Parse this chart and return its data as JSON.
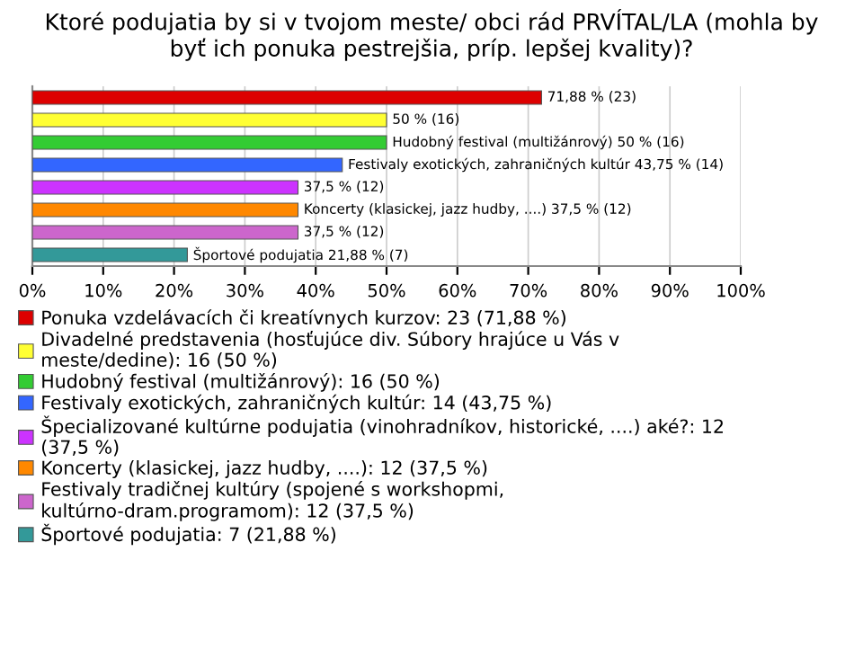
{
  "chart_data": {
    "type": "bar",
    "orientation": "horizontal",
    "title": "Ktoré podujatia by si v tvojom meste/ obci rád PRVÍTAL/LA (mohla by\nbyť ich ponuka pestrejšia, príp. lepšej kvality)?",
    "categories": [
      null,
      null,
      null,
      null,
      null,
      null,
      null,
      null
    ],
    "series": [
      {
        "name": "Ponuka vzdelávacích či kreatívnych kurzov: 23 (71,88 %)",
        "color": "#dd0000",
        "values": [
          71.88,
          null,
          null,
          null,
          null,
          null,
          null,
          null
        ],
        "value_labels": [
          "71,88 % (23)",
          null,
          null,
          null,
          null,
          null,
          null,
          null
        ]
      },
      {
        "name": "Divadelné predstavenia (hosťujúce div. Súbory hrajúce u Vás v\nmeste/dedine): 16 (50 %)",
        "color": "#ffff33",
        "values": [
          null,
          50,
          null,
          null,
          null,
          null,
          null,
          null
        ],
        "value_labels": [
          null,
          "50 % (16)",
          null,
          null,
          null,
          null,
          null,
          null
        ]
      },
      {
        "name": "Hudobný festival (multižánrový): 16 (50 %)",
        "color": "#33cc33",
        "values": [
          null,
          null,
          50,
          null,
          null,
          null,
          null,
          null
        ],
        "value_labels": [
          null,
          null,
          "Hudobný festival (multižánrový) 50 % (16)",
          null,
          null,
          null,
          null,
          null
        ]
      },
      {
        "name": "Festivaly exotických, zahraničných kultúr: 14 (43,75 %)",
        "color": "#3366ff",
        "values": [
          null,
          null,
          null,
          43.75,
          null,
          null,
          null,
          null
        ],
        "value_labels": [
          null,
          null,
          null,
          "Festivaly exotických, zahraničných kultúr 43,75 % (14)",
          null,
          null,
          null,
          null
        ]
      },
      {
        "name": "Špecializované kultúrne podujatia (vinohradníkov, historické, ....) aké?: 12\n(37,5 %)",
        "color": "#cc33ff",
        "values": [
          null,
          null,
          null,
          null,
          37.5,
          null,
          null,
          null
        ],
        "value_labels": [
          null,
          null,
          null,
          null,
          "37,5 % (12)",
          null,
          null,
          null
        ]
      },
      {
        "name": "Koncerty (klasickej, jazz hudby, ....): 12 (37,5 %)",
        "color": "#ff8800",
        "values": [
          null,
          null,
          null,
          null,
          null,
          37.5,
          null,
          null
        ],
        "value_labels": [
          null,
          null,
          null,
          null,
          null,
          "Koncerty (klasickej, jazz hudby, ....) 37,5 % (12)",
          null,
          null
        ]
      },
      {
        "name": "Festivaly tradičnej kultúry (spojené s workshopmi,\nkultúrno-dram.programom): 12 (37,5 %)",
        "color": "#cc66cc",
        "values": [
          null,
          null,
          null,
          null,
          null,
          null,
          37.5,
          null
        ],
        "value_labels": [
          null,
          null,
          null,
          null,
          null,
          null,
          "37,5 % (12)",
          null
        ]
      },
      {
        "name": "Športové podujatia: 7 (21,88 %)",
        "color": "#339999",
        "values": [
          null,
          null,
          null,
          null,
          null,
          null,
          null,
          21.88
        ],
        "value_labels": [
          null,
          null,
          null,
          null,
          null,
          null,
          null,
          "Športové podujatia 21,88 % (7)"
        ]
      }
    ],
    "xlim": [
      0,
      100
    ],
    "tick_labels": "x",
    "xticks": [
      {
        "value": 0,
        "label": "0%"
      },
      {
        "value": 10,
        "label": "10%"
      },
      {
        "value": 20,
        "label": "20%"
      },
      {
        "value": 30,
        "label": "30%"
      },
      {
        "value": 40,
        "label": "40%"
      },
      {
        "value": 50,
        "label": "50%"
      },
      {
        "value": 60,
        "label": "60%"
      },
      {
        "value": 70,
        "label": "70%"
      },
      {
        "value": 80,
        "label": "80%"
      },
      {
        "value": 90,
        "label": "90%"
      },
      {
        "value": 100,
        "label": "100%"
      }
    ],
    "grid": "x",
    "legend": "bottom"
  }
}
